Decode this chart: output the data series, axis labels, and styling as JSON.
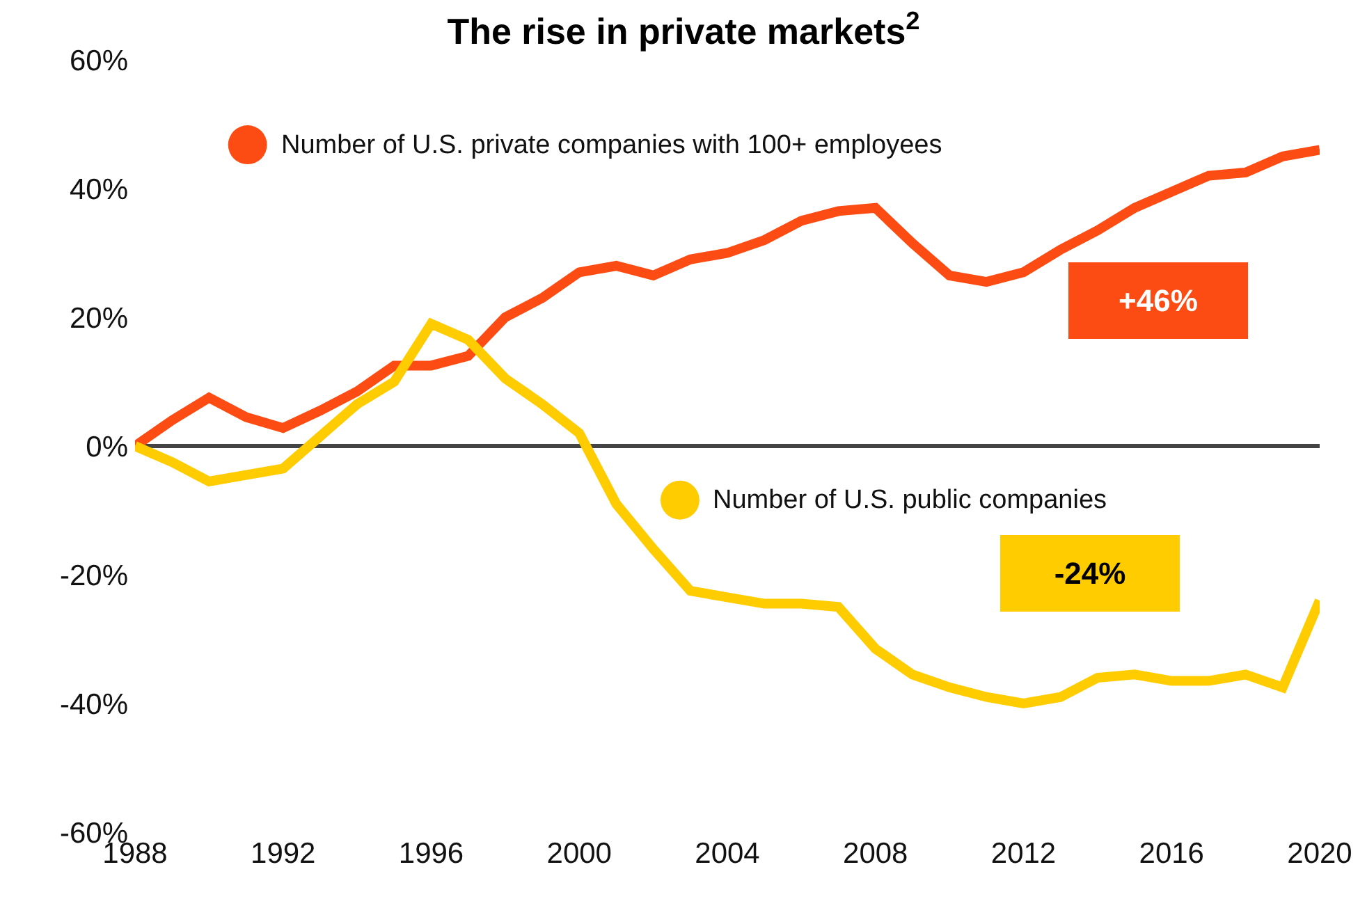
{
  "chart_data": {
    "type": "line",
    "title": "The rise in private markets$^{2}$",
    "x": [
      1988,
      1989,
      1990,
      1991,
      1992,
      1993,
      1994,
      1995,
      1996,
      1997,
      1998,
      1999,
      2000,
      2001,
      2002,
      2003,
      2004,
      2005,
      2006,
      2007,
      2008,
      2009,
      2010,
      2011,
      2012,
      2013,
      2014,
      2015,
      2016,
      2017,
      2018,
      2019,
      2020
    ],
    "series": [
      {
        "name": "Number of U.S. private companies with 100+ employees",
        "color": "#fc4c13",
        "values": [
          0,
          4,
          7.5,
          4.5,
          2.8,
          5.5,
          8.5,
          12.5,
          12.5,
          14,
          20,
          23,
          27,
          28,
          26.5,
          29,
          30,
          32,
          35,
          36.5,
          37,
          31.5,
          26.5,
          25.5,
          27,
          30.5,
          33.5,
          37,
          39.5,
          42,
          42.5,
          45,
          46
        ]
      },
      {
        "name": "Number of U.S. public companies",
        "color": "#ffcc00",
        "values": [
          0,
          -2.5,
          -5.5,
          -4.5,
          -3.5,
          1.5,
          6.5,
          10,
          19,
          16.5,
          10.5,
          6.5,
          2,
          -9,
          -16,
          -22.5,
          -23.5,
          -24.5,
          -24.5,
          -25,
          -31.5,
          -35.5,
          -37.5,
          -39,
          -40,
          -39,
          -36,
          -35.5,
          -36.5,
          -36.5,
          -35.5,
          -37.5,
          -24
        ]
      }
    ],
    "annotations": [
      "+46%",
      "-24%"
    ],
    "xlim": [
      1988,
      2020
    ],
    "xticks": [
      1988,
      1992,
      1996,
      2000,
      2004,
      2008,
      2012,
      2016,
      2020
    ],
    "ylim": [
      -60,
      60
    ],
    "yticks": [
      {
        "value": -60,
        "label": "-60%"
      },
      {
        "value": -40,
        "label": "-40%"
      },
      {
        "value": -20,
        "label": "-20%"
      },
      {
        "value": 0,
        "label": "0%"
      },
      {
        "value": 20,
        "label": "20%"
      },
      {
        "value": 40,
        "label": "40%"
      },
      {
        "value": 60,
        "label": "60%"
      }
    ],
    "ref_lines": [
      {
        "axis": "y",
        "value": 0,
        "color": "#444444"
      }
    ],
    "grid": false,
    "legend": "top left",
    "marker": "none",
    "line_style": "solid"
  }
}
